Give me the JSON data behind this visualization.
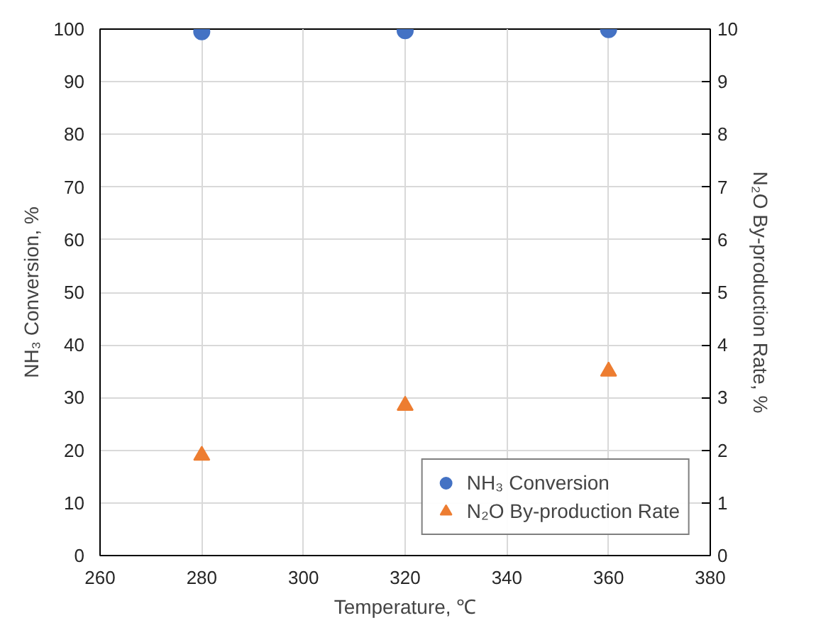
{
  "chart_data": {
    "type": "scatter",
    "xlabel": "Temperature, ℃",
    "ylabel": "NH₃ Conversion, %",
    "y2label": "N₂O By-production Rate, %",
    "x": [
      280,
      320,
      360
    ],
    "series": [
      {
        "name": "NH₃ Conversion",
        "color": "#4472c4",
        "values": [
          99.5,
          99.7,
          99.9
        ],
        "marker": "circle"
      },
      {
        "name": "N₂O By-production Rate",
        "color": "#ed7d31",
        "values": [
          1.9,
          2.85,
          3.5
        ],
        "marker": "triangle",
        "axis": "y2"
      }
    ],
    "xlim": [
      260,
      380
    ],
    "xticks": [
      260,
      280,
      300,
      320,
      340,
      360,
      380
    ],
    "ylim": [
      0,
      100
    ],
    "yticks": [
      0,
      10,
      20,
      30,
      40,
      50,
      60,
      70,
      80,
      90,
      100
    ],
    "y2lim": [
      0,
      10
    ],
    "y2ticks": [
      0,
      1,
      2,
      3,
      4,
      5,
      6,
      7,
      8,
      9,
      10
    ],
    "grid": true,
    "legend": "bottom right"
  }
}
